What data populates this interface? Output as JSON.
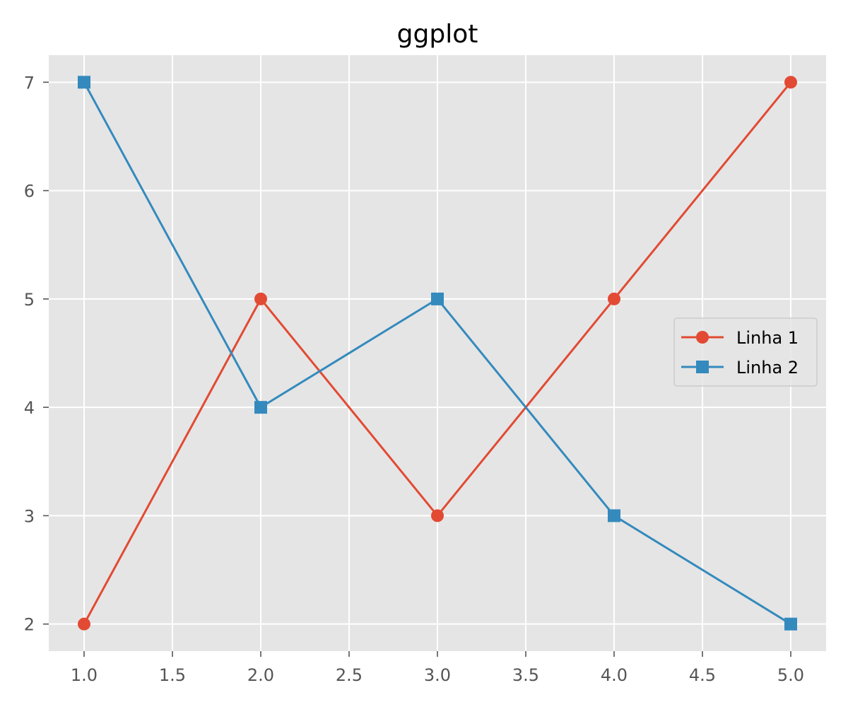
{
  "chart_data": {
    "type": "line",
    "title": "ggplot",
    "xlabel": "",
    "ylabel": "",
    "xlim": [
      0.8,
      5.2
    ],
    "ylim": [
      1.75,
      7.25
    ],
    "x_ticks": [
      "1.0",
      "1.5",
      "2.0",
      "2.5",
      "3.0",
      "3.5",
      "4.0",
      "4.5",
      "5.0"
    ],
    "y_ticks": [
      "2",
      "3",
      "4",
      "5",
      "6",
      "7"
    ],
    "grid": true,
    "legend_position": "center-right",
    "background": "#e5e5e5",
    "x": [
      1,
      2,
      3,
      4,
      5
    ],
    "series": [
      {
        "name": "Linha 1",
        "values": [
          2,
          5,
          3,
          5,
          7
        ],
        "color": "#e24a33",
        "marker": "circle"
      },
      {
        "name": "Linha 2",
        "values": [
          7,
          4,
          5,
          3,
          2
        ],
        "color": "#348abd",
        "marker": "square"
      }
    ]
  }
}
